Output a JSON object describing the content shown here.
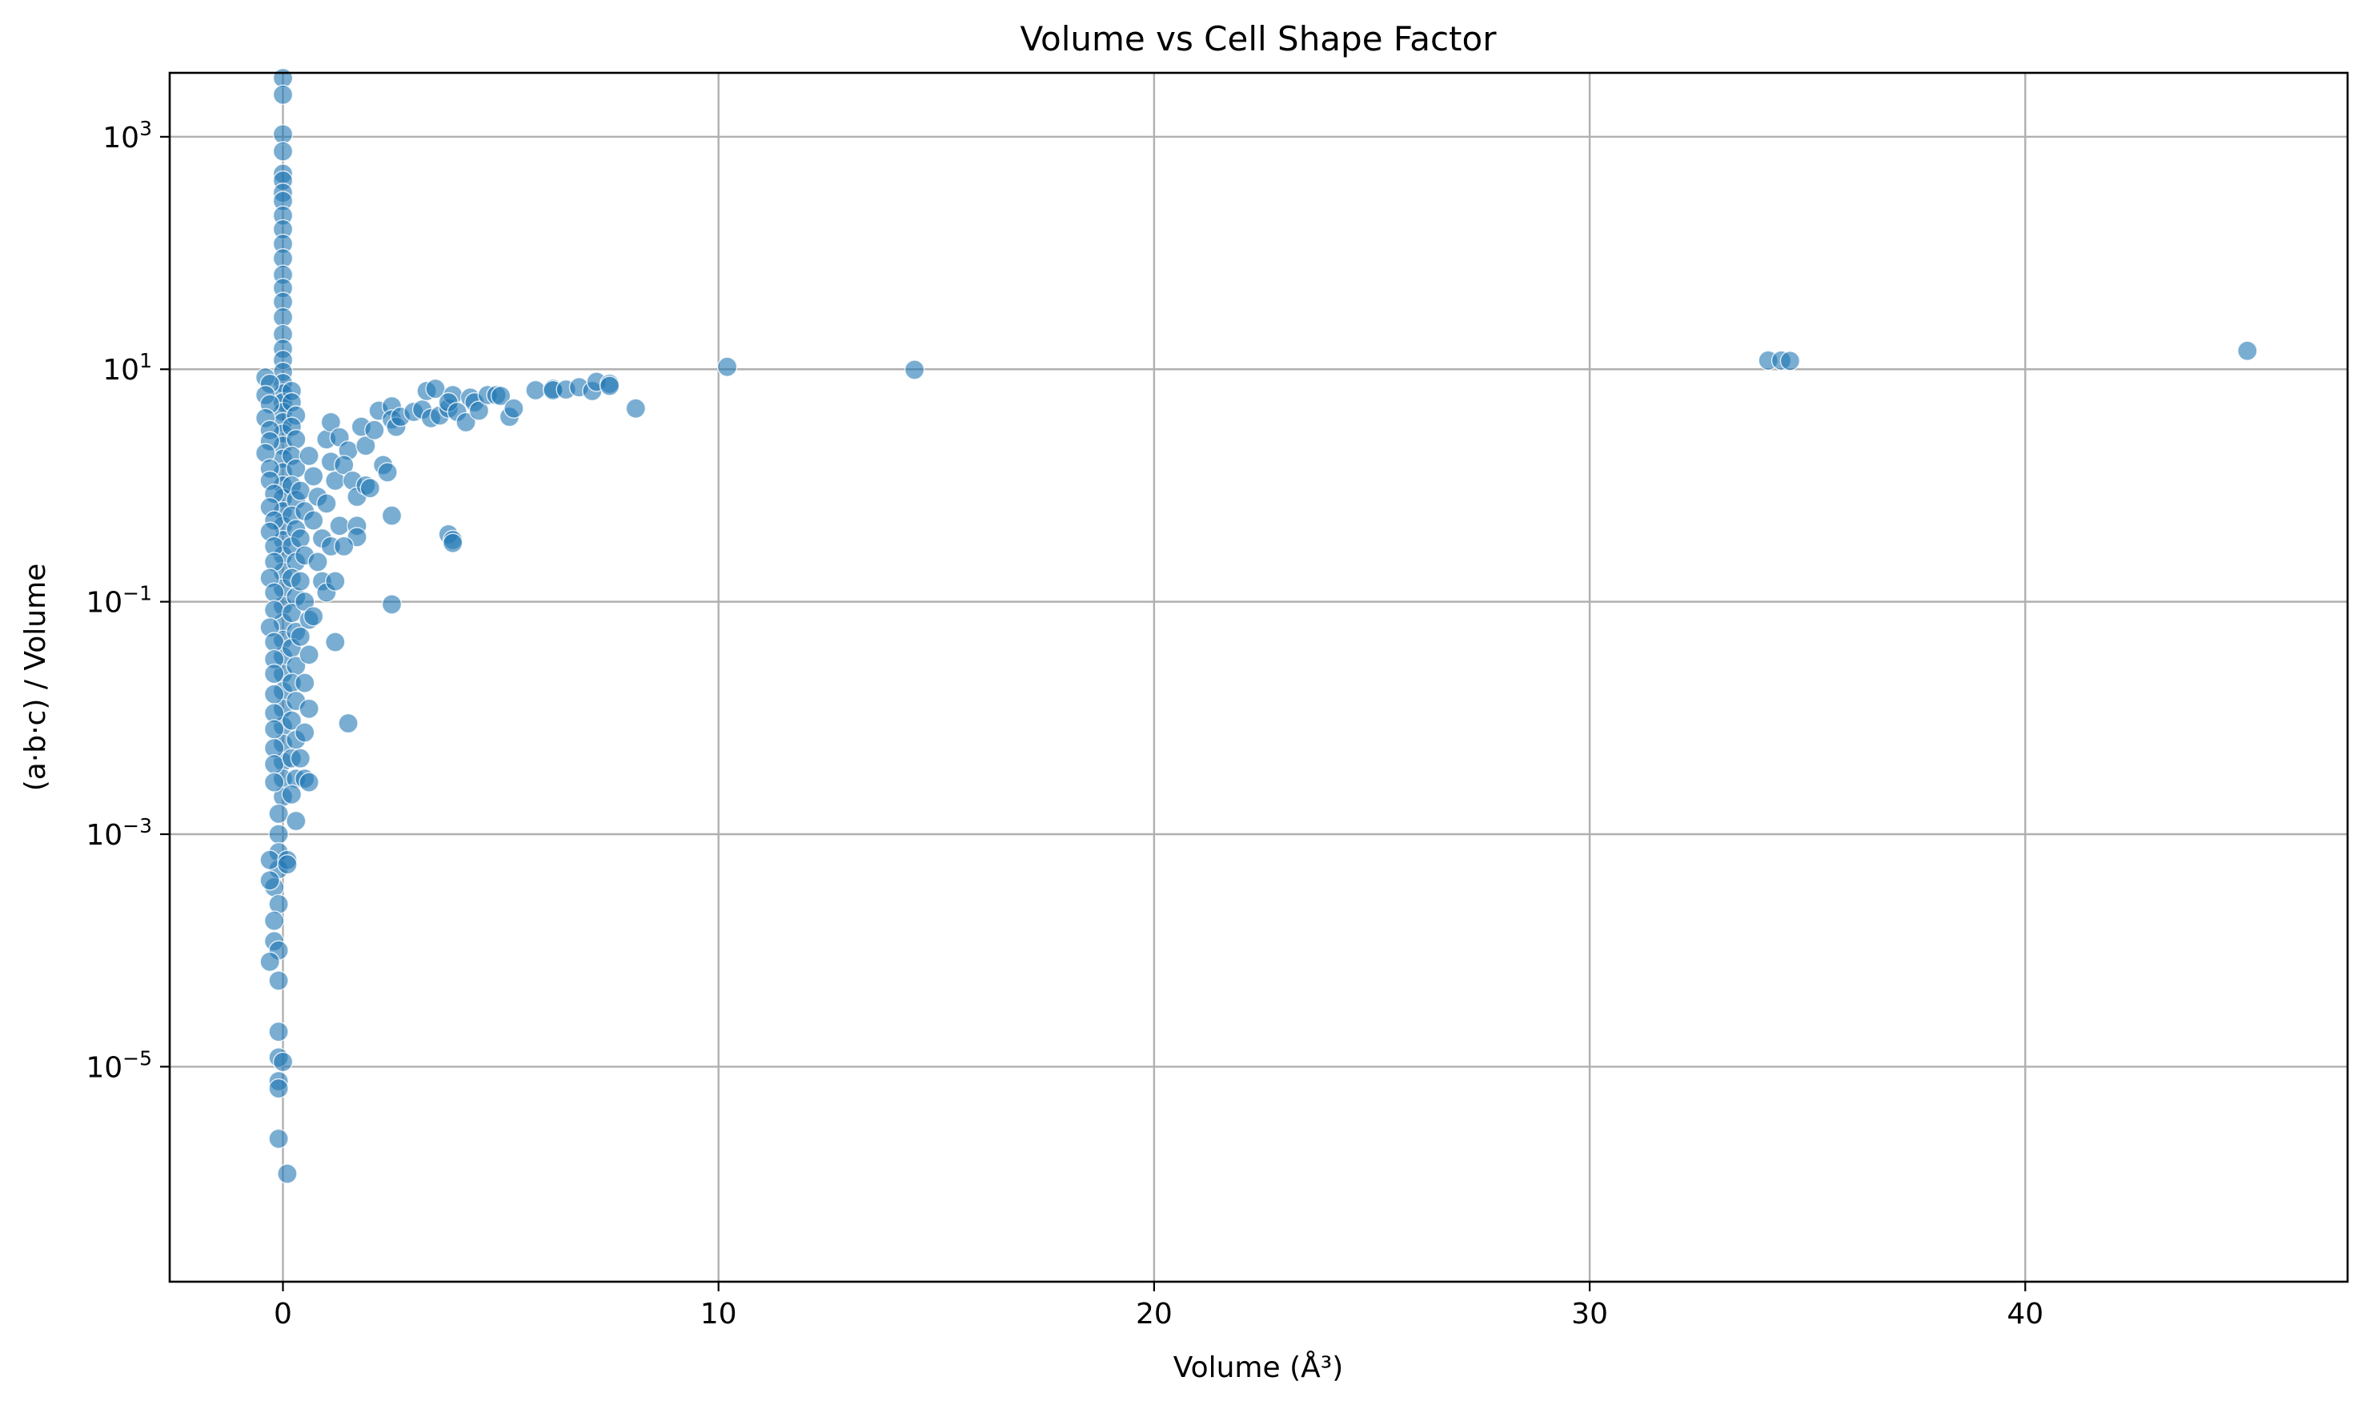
{
  "chart_data": {
    "type": "scatter",
    "title": "Volume vs Cell Shape Factor",
    "xlabel": "Volume (Å³)",
    "ylabel": "(a·b·c) / Volume",
    "xscale": "linear",
    "yscale": "log",
    "xlim": [
      -2.6,
      47.4
    ],
    "ylim_log10": [
      -6.85,
      3.55
    ],
    "xticks": [
      {
        "value": 0,
        "label": "0"
      },
      {
        "value": 10,
        "label": "10"
      },
      {
        "value": 20,
        "label": "20"
      },
      {
        "value": 30,
        "label": "30"
      },
      {
        "value": 40,
        "label": "40"
      }
    ],
    "yticks": [
      {
        "exp": 3,
        "base": "10",
        "sup": "3"
      },
      {
        "exp": 1,
        "base": "10",
        "sup": "1"
      },
      {
        "exp": -1,
        "base": "10",
        "sup": "−1"
      },
      {
        "exp": -3,
        "base": "10",
        "sup": "−3"
      },
      {
        "exp": -5,
        "base": "10",
        "sup": "−5"
      }
    ],
    "grid": true,
    "legend": "none",
    "marker_color": "#1f77b4",
    "series": [
      {
        "points": [
          [
            0.0,
            3200
          ],
          [
            0.0,
            2300
          ],
          [
            0.0,
            1050
          ],
          [
            0.0,
            750
          ],
          [
            0.0,
            480
          ],
          [
            0.0,
            420
          ],
          [
            0.0,
            330
          ],
          [
            0.0,
            280
          ],
          [
            0.0,
            210
          ],
          [
            0.0,
            160
          ],
          [
            0.0,
            120
          ],
          [
            0.0,
            90
          ],
          [
            0.0,
            65
          ],
          [
            0.0,
            50
          ],
          [
            0.0,
            38
          ],
          [
            0.0,
            28
          ],
          [
            0.0,
            20
          ],
          [
            0.0,
            15
          ],
          [
            0.0,
            12
          ],
          [
            0.0,
            9.5
          ],
          [
            0.0,
            7.6
          ],
          [
            0.0,
            6.2
          ],
          [
            0.0,
            5.2
          ],
          [
            0.0,
            4.3
          ],
          [
            0.0,
            3.5
          ],
          [
            0.0,
            2.8
          ],
          [
            0.0,
            2.2
          ],
          [
            0.0,
            1.7
          ],
          [
            0.0,
            1.3
          ],
          [
            0.0,
            1.0
          ],
          [
            0.0,
            0.78
          ],
          [
            0.0,
            0.6
          ],
          [
            0.0,
            0.45
          ],
          [
            0.0,
            0.34
          ],
          [
            0.0,
            0.25
          ],
          [
            0.0,
            0.18
          ],
          [
            0.0,
            0.13
          ],
          [
            0.0,
            0.092
          ],
          [
            0.0,
            0.066
          ],
          [
            0.0,
            0.047
          ],
          [
            0.0,
            0.034
          ],
          [
            0.0,
            0.024
          ],
          [
            0.0,
            0.017
          ],
          [
            0.0,
            0.012
          ],
          [
            0.0,
            0.0085
          ],
          [
            0.0,
            0.006
          ],
          [
            0.0,
            0.0042
          ],
          [
            0.0,
            0.003
          ],
          [
            0.0,
            0.0021
          ],
          [
            -0.1,
            0.0015
          ],
          [
            -0.1,
            0.001
          ],
          [
            -0.1,
            0.0007
          ],
          [
            -0.1,
            0.0005
          ],
          [
            -0.2,
            0.00035
          ],
          [
            -0.1,
            0.00025
          ],
          [
            -0.2,
            0.00018
          ],
          [
            -0.2,
            0.00012
          ],
          [
            -0.1,
            0.0001
          ],
          [
            -0.3,
            8e-05
          ],
          [
            -0.1,
            5.5e-05
          ],
          [
            -0.1,
            2e-05
          ],
          [
            -0.1,
            1.2e-05
          ],
          [
            0.0,
            1.1e-05
          ],
          [
            -0.1,
            7.5e-06
          ],
          [
            -0.1,
            6.5e-06
          ],
          [
            -0.1,
            2.4e-06
          ],
          [
            0.1,
            1.2e-06
          ],
          [
            -0.4,
            8.5
          ],
          [
            -0.3,
            7.5
          ],
          [
            -0.4,
            6.0
          ],
          [
            -0.3,
            5.0
          ],
          [
            -0.4,
            3.8
          ],
          [
            -0.3,
            3.0
          ],
          [
            -0.3,
            2.4
          ],
          [
            -0.4,
            1.9
          ],
          [
            -0.3,
            1.4
          ],
          [
            -0.3,
            1.1
          ],
          [
            -0.2,
            0.85
          ],
          [
            -0.3,
            0.65
          ],
          [
            -0.2,
            0.5
          ],
          [
            -0.3,
            0.4
          ],
          [
            -0.2,
            0.3
          ],
          [
            -0.2,
            0.22
          ],
          [
            -0.3,
            0.16
          ],
          [
            -0.2,
            0.12
          ],
          [
            -0.2,
            0.085
          ],
          [
            -0.3,
            0.06
          ],
          [
            -0.2,
            0.045
          ],
          [
            -0.2,
            0.032
          ],
          [
            -0.2,
            0.024
          ],
          [
            -0.2,
            0.016
          ],
          [
            -0.2,
            0.011
          ],
          [
            -0.2,
            0.008
          ],
          [
            -0.2,
            0.0055
          ],
          [
            -0.2,
            0.004
          ],
          [
            -0.2,
            0.0028
          ],
          [
            -0.3,
            0.0006
          ],
          [
            -0.3,
            0.0004
          ],
          [
            0.2,
            6.5
          ],
          [
            0.2,
            5.2
          ],
          [
            0.3,
            4.0
          ],
          [
            0.2,
            3.2
          ],
          [
            0.3,
            2.5
          ],
          [
            0.2,
            1.8
          ],
          [
            0.3,
            1.4
          ],
          [
            0.2,
            1.0
          ],
          [
            0.3,
            0.75
          ],
          [
            0.2,
            0.55
          ],
          [
            0.3,
            0.42
          ],
          [
            0.2,
            0.3
          ],
          [
            0.3,
            0.22
          ],
          [
            0.2,
            0.16
          ],
          [
            0.3,
            0.11
          ],
          [
            0.2,
            0.08
          ],
          [
            0.3,
            0.055
          ],
          [
            0.2,
            0.04
          ],
          [
            0.3,
            0.028
          ],
          [
            0.2,
            0.02
          ],
          [
            0.3,
            0.014
          ],
          [
            0.2,
            0.0095
          ],
          [
            0.3,
            0.0065
          ],
          [
            0.2,
            0.0045
          ],
          [
            0.3,
            0.003
          ],
          [
            0.2,
            0.0022
          ],
          [
            0.3,
            0.0013
          ],
          [
            0.1,
            0.0006
          ],
          [
            0.1,
            0.00055
          ],
          [
            0.4,
            0.9
          ],
          [
            0.5,
            0.6
          ],
          [
            0.4,
            0.35
          ],
          [
            0.5,
            0.25
          ],
          [
            0.4,
            0.15
          ],
          [
            0.5,
            0.1
          ],
          [
            0.6,
            0.07
          ],
          [
            0.4,
            0.05
          ],
          [
            0.6,
            0.035
          ],
          [
            0.5,
            0.02
          ],
          [
            0.6,
            0.012
          ],
          [
            0.5,
            0.0075
          ],
          [
            0.4,
            0.0045
          ],
          [
            0.5,
            0.003
          ],
          [
            0.6,
            0.0028
          ],
          [
            0.6,
            1.8
          ],
          [
            0.7,
            1.2
          ],
          [
            0.8,
            0.8
          ],
          [
            0.7,
            0.5
          ],
          [
            0.9,
            0.35
          ],
          [
            0.8,
            0.22
          ],
          [
            0.9,
            0.15
          ],
          [
            1.0,
            0.12
          ],
          [
            0.7,
            0.075
          ],
          [
            1.0,
            2.5
          ],
          [
            1.1,
            1.6
          ],
          [
            1.2,
            1.1
          ],
          [
            1.0,
            0.7
          ],
          [
            1.3,
            0.45
          ],
          [
            1.1,
            0.3
          ],
          [
            1.2,
            0.15
          ],
          [
            1.2,
            0.045
          ],
          [
            1.5,
            0.009
          ],
          [
            1.1,
            3.5
          ],
          [
            1.3,
            2.6
          ],
          [
            1.5,
            2.0
          ],
          [
            1.4,
            1.5
          ],
          [
            1.6,
            1.1
          ],
          [
            1.7,
            0.8
          ],
          [
            1.7,
            0.45
          ],
          [
            1.7,
            0.36
          ],
          [
            1.4,
            0.3
          ],
          [
            1.8,
            3.2
          ],
          [
            1.9,
            2.2
          ],
          [
            1.9,
            1.0
          ],
          [
            2.0,
            0.95
          ],
          [
            2.1,
            3.0
          ],
          [
            2.2,
            4.4
          ],
          [
            2.3,
            1.5
          ],
          [
            2.4,
            1.3
          ],
          [
            2.5,
            4.8
          ],
          [
            2.5,
            3.7
          ],
          [
            2.6,
            3.2
          ],
          [
            2.7,
            3.9
          ],
          [
            2.5,
            0.55
          ],
          [
            2.5,
            0.095
          ],
          [
            3.0,
            4.3
          ],
          [
            3.2,
            4.5
          ],
          [
            3.3,
            6.5
          ],
          [
            3.4,
            3.8
          ],
          [
            3.5,
            6.8
          ],
          [
            3.6,
            4.0
          ],
          [
            3.8,
            4.6
          ],
          [
            3.9,
            6.0
          ],
          [
            3.8,
            5.2
          ],
          [
            3.8,
            0.38
          ],
          [
            3.9,
            0.34
          ],
          [
            3.9,
            0.32
          ],
          [
            4.0,
            4.3
          ],
          [
            4.2,
            3.5
          ],
          [
            4.3,
            5.7
          ],
          [
            4.4,
            5.2
          ],
          [
            4.5,
            4.4
          ],
          [
            4.7,
            6.0
          ],
          [
            4.9,
            6.0
          ],
          [
            5.0,
            5.9
          ],
          [
            5.2,
            3.9
          ],
          [
            5.3,
            4.6
          ],
          [
            5.8,
            6.6
          ],
          [
            6.2,
            6.8
          ],
          [
            6.2,
            6.6
          ],
          [
            6.5,
            6.7
          ],
          [
            6.8,
            7.0
          ],
          [
            7.1,
            6.5
          ],
          [
            7.2,
            7.8
          ],
          [
            7.5,
            7.5
          ],
          [
            7.5,
            7.2
          ],
          [
            8.1,
            4.6
          ],
          [
            10.2,
            10.5
          ],
          [
            14.5,
            9.9
          ],
          [
            34.1,
            11.9
          ],
          [
            34.4,
            11.9
          ],
          [
            34.6,
            11.8
          ],
          [
            45.1,
            14.4
          ]
        ]
      }
    ]
  }
}
